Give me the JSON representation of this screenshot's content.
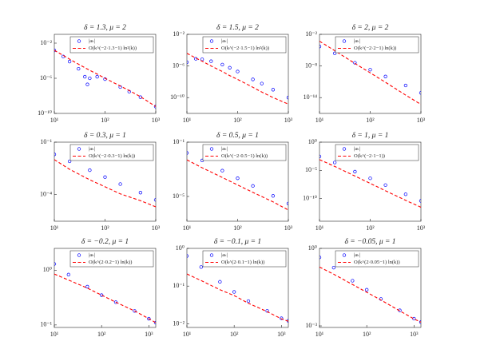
{
  "chart_data": [
    {
      "type": "line",
      "title": "δ = 1.3, μ = 2",
      "log_x": true,
      "log_y": true,
      "legend": "upper right",
      "x": [
        10,
        15,
        20,
        30,
        40,
        45,
        50,
        70,
        100,
        200,
        300,
        500,
        1000
      ],
      "xlim": [
        10,
        1000
      ],
      "xticks": [
        {
          "value": 10,
          "label": "10¹"
        },
        {
          "value": 100,
          "label": "10²"
        },
        {
          "value": 1000,
          "label": "10³"
        }
      ],
      "ylim": [
        1e-10,
        0.1
      ],
      "yticks": [
        {
          "value": 1e-10,
          "label": "10⁻¹⁰"
        },
        {
          "value": 1e-06,
          "label": "10⁻⁶"
        },
        {
          "value": 0.01,
          "label": "10⁻²"
        }
      ],
      "series": [
        {
          "name": "|aₖ|",
          "color": "#0000ff",
          "marker": "o",
          "values": [
            0.0015,
            0.0003,
            8e-05,
            1.2e-05,
            1.5e-06,
            2e-07,
            1e-06,
            1.5e-06,
            8e-07,
            1e-07,
            3e-08,
            7e-09,
            6e-10
          ]
        },
        {
          "name": "O(k^(−2·1.3−1) ln²(k))",
          "color": "#ff0000",
          "linestyle": "dashed",
          "values": [
            0.0015,
            0.0004,
            0.00015,
            4e-05,
            1.6e-05,
            1.1e-05,
            8e-06,
            3e-06,
            1e-06,
            1.3e-07,
            4e-08,
            8e-09,
            6e-10
          ]
        }
      ]
    },
    {
      "type": "line",
      "title": "δ = 1.5, μ = 2",
      "log_x": true,
      "log_y": true,
      "legend": "upper right",
      "x": [
        10,
        15,
        20,
        30,
        50,
        70,
        100,
        200,
        300,
        500,
        1000
      ],
      "xlim": [
        10,
        1000
      ],
      "xticks": [
        {
          "value": 10,
          "label": "10¹"
        },
        {
          "value": 100,
          "label": "10²"
        },
        {
          "value": 1000,
          "label": "10³"
        }
      ],
      "ylim": [
        1e-12,
        0.01
      ],
      "yticks": [
        {
          "value": 1e-10,
          "label": "10⁻¹⁰"
        },
        {
          "value": 1e-06,
          "label": "10⁻⁶"
        },
        {
          "value": 0.01,
          "label": "10⁻²"
        }
      ],
      "series": [
        {
          "name": "|aₖ|",
          "color": "#0000ff",
          "marker": "o",
          "values": [
            3e-06,
            8e-06,
            7e-06,
            4e-06,
            1.5e-06,
            6e-07,
            2e-07,
            2e-08,
            6e-09,
            1e-09,
            1e-10
          ]
        },
        {
          "name": "O(k^(−2·1.5−1) ln²(k))",
          "color": "#ff0000",
          "linestyle": "dashed",
          "values": [
            4e-05,
            1e-05,
            4e-06,
            1e-06,
            2e-07,
            6e-08,
            2e-08,
            2e-09,
            5e-10,
            1e-10,
            1.5e-11
          ]
        }
      ]
    },
    {
      "type": "line",
      "title": "δ = 2, μ = 2",
      "log_x": true,
      "log_y": true,
      "legend": "upper right",
      "x": [
        10,
        20,
        50,
        100,
        200,
        500,
        1000
      ],
      "xlim": [
        10,
        1000
      ],
      "xticks": [
        {
          "value": 10,
          "label": "10¹"
        },
        {
          "value": 100,
          "label": "10²"
        },
        {
          "value": 1000,
          "label": "10³"
        }
      ],
      "ylim": [
        1e-17,
        0.01
      ],
      "yticks": [
        {
          "value": 1e-14,
          "label": "10⁻¹⁴"
        },
        {
          "value": 1e-08,
          "label": "10⁻⁸"
        },
        {
          "value": 0.01,
          "label": "10⁻²"
        }
      ],
      "series": [
        {
          "name": "|aₖ|",
          "color": "#0000ff",
          "marker": "o",
          "values": [
            5e-05,
            2.5e-06,
            4e-08,
            2e-09,
            1e-10,
            2e-12,
            8e-14
          ]
        },
        {
          "name": "O(k^(−2·2−1) ln(k))",
          "color": "#ff0000",
          "linestyle": "dashed",
          "values": [
            0.0005,
            8e-06,
            3e-08,
            5e-10,
            8e-12,
            3e-14,
            5e-16
          ]
        }
      ]
    },
    {
      "type": "line",
      "title": "δ = 0.3, μ = 1",
      "log_x": true,
      "log_y": true,
      "legend": "upper right",
      "x": [
        10,
        20,
        50,
        100,
        200,
        500,
        1000
      ],
      "xlim": [
        10,
        1000
      ],
      "xticks": [
        {
          "value": 10,
          "label": "10¹"
        },
        {
          "value": 100,
          "label": "10²"
        },
        {
          "value": 1000,
          "label": "10³"
        }
      ],
      "ylim": [
        3e-06,
        0.1
      ],
      "yticks": [
        {
          "value": 0.0001,
          "label": "10⁻⁴"
        },
        {
          "value": 0.1,
          "label": "10⁻¹"
        }
      ],
      "series": [
        {
          "name": "|aₖ|",
          "color": "#0000ff",
          "marker": "o",
          "values": [
            0.02,
            0.008,
            0.0025,
            0.001,
            0.0004,
            0.00013,
            5e-05
          ]
        },
        {
          "name": "O(k^(−2·0.3−1) ln(k))",
          "color": "#ff0000",
          "linestyle": "dashed",
          "values": [
            0.01,
            0.0028,
            0.0007,
            0.00028,
            0.00011,
            4.5e-05,
            2e-05
          ]
        }
      ]
    },
    {
      "type": "line",
      "title": "δ = 0.5, μ = 1",
      "log_x": true,
      "log_y": true,
      "legend": "upper right",
      "x": [
        10,
        20,
        50,
        100,
        200,
        500,
        1000
      ],
      "xlim": [
        10,
        1000
      ],
      "xticks": [
        {
          "value": 10,
          "label": "10¹"
        },
        {
          "value": 100,
          "label": "10²"
        },
        {
          "value": 1000,
          "label": "10³"
        }
      ],
      "ylim": [
        1.5e-07,
        0.1
      ],
      "yticks": [
        {
          "value": 1e-05,
          "label": "10⁻⁵"
        },
        {
          "value": 0.1,
          "label": "10⁻¹"
        }
      ],
      "series": [
        {
          "name": "|aₖ|",
          "color": "#0000ff",
          "marker": "o",
          "values": [
            0.016,
            0.0045,
            0.0008,
            0.00022,
            6e-05,
            1.1e-05,
            3e-06
          ]
        },
        {
          "name": "O(k^(−2·0.5−1) ln(k))",
          "color": "#ff0000",
          "linestyle": "dashed",
          "values": [
            0.005,
            0.0013,
            0.00025,
            7e-05,
            2e-05,
            4e-06,
            1e-06
          ]
        }
      ]
    },
    {
      "type": "line",
      "title": "δ = 1, μ = 1",
      "log_x": true,
      "log_y": true,
      "legend": "upper right",
      "x": [
        10,
        20,
        50,
        100,
        200,
        500,
        1000
      ],
      "xlim": [
        10,
        1000
      ],
      "xticks": [
        {
          "value": 10,
          "label": "10¹"
        },
        {
          "value": 100,
          "label": "10²"
        },
        {
          "value": 1000,
          "label": "10³"
        }
      ],
      "ylim": [
        1e-14,
        1
      ],
      "yticks": [
        {
          "value": 1e-10,
          "label": "10⁻¹⁰"
        },
        {
          "value": 1e-05,
          "label": "10⁻⁵"
        },
        {
          "value": 1,
          "label": "10⁰"
        }
      ],
      "series": [
        {
          "name": "|aₖ|",
          "color": "#0000ff",
          "marker": "o",
          "values": [
            0.003,
            0.00025,
            6e-06,
            4e-07,
            2.5e-08,
            6e-10,
            4e-11
          ]
        },
        {
          "name": "O(k^(−2·1−1))",
          "color": "#ff0000",
          "linestyle": "dashed",
          "values": [
            0.0008,
            5e-05,
            1e-06,
            5e-08,
            2.5e-09,
            5e-11,
            3e-12
          ]
        }
      ]
    },
    {
      "type": "line",
      "title": "δ = −0.2, μ = 1",
      "log_x": true,
      "log_y": true,
      "legend": "upper right",
      "x": [
        10,
        20,
        50,
        100,
        200,
        500,
        1000,
        1400
      ],
      "xlim": [
        10,
        1400
      ],
      "xticks": [
        {
          "value": 10,
          "label": "10¹"
        },
        {
          "value": 100,
          "label": "10²"
        },
        {
          "value": 1000,
          "label": "10³"
        }
      ],
      "ylim": [
        0.09,
        2.5
      ],
      "yticks": [
        {
          "value": 0.1,
          "label": "10⁻¹"
        },
        {
          "value": 1,
          "label": "10⁰"
        }
      ],
      "series": [
        {
          "name": "|aₖ|",
          "color": "#0000ff",
          "marker": "o",
          "values": [
            1.3,
            0.83,
            0.5,
            0.35,
            0.26,
            0.18,
            0.13,
            0.11
          ]
        },
        {
          "name": "O(k^(2·0.2−1) ln(k))",
          "color": "#ff0000",
          "linestyle": "dashed",
          "values": [
            0.85,
            0.66,
            0.47,
            0.35,
            0.26,
            0.18,
            0.13,
            0.11
          ]
        }
      ]
    },
    {
      "type": "line",
      "title": "δ = −0.1, μ = 1",
      "log_x": true,
      "log_y": true,
      "legend": "upper right",
      "x": [
        10,
        20,
        50,
        100,
        200,
        500,
        1000,
        1400
      ],
      "xlim": [
        10,
        1400
      ],
      "xticks": [
        {
          "value": 10,
          "label": "10¹"
        },
        {
          "value": 100,
          "label": "10²"
        },
        {
          "value": 1000,
          "label": "10³"
        }
      ],
      "ylim": [
        0.008,
        1
      ],
      "yticks": [
        {
          "value": 0.01,
          "label": "10⁻²"
        },
        {
          "value": 0.1,
          "label": "10⁻¹"
        },
        {
          "value": 1,
          "label": "10⁰"
        }
      ],
      "series": [
        {
          "name": "|aₖ|",
          "color": "#0000ff",
          "marker": "o",
          "values": [
            0.63,
            0.32,
            0.13,
            0.07,
            0.04,
            0.022,
            0.014,
            0.012
          ]
        },
        {
          "name": "O(k^(2·0.1−1) ln(k))",
          "color": "#ff0000",
          "linestyle": "dashed",
          "values": [
            0.21,
            0.14,
            0.08,
            0.056,
            0.035,
            0.021,
            0.0135,
            0.0117
          ]
        }
      ]
    },
    {
      "type": "line",
      "title": "δ = −0.05, μ = 1",
      "log_x": true,
      "log_y": true,
      "legend": "upper right",
      "x": [
        10,
        20,
        50,
        100,
        200,
        500,
        1000,
        1400
      ],
      "xlim": [
        10,
        1400
      ],
      "xticks": [
        {
          "value": 10,
          "label": "10¹"
        },
        {
          "value": 100,
          "label": "10²"
        },
        {
          "value": 1000,
          "label": "10³"
        }
      ],
      "ylim": [
        0.00087,
        1
      ],
      "yticks": [
        {
          "value": 0.001,
          "label": "10⁻³"
        },
        {
          "value": 1,
          "label": "10⁰"
        }
      ],
      "series": [
        {
          "name": "|aₖ|",
          "color": "#0000ff",
          "marker": "o",
          "values": [
            0.45,
            0.18,
            0.056,
            0.025,
            0.011,
            0.004,
            0.0019,
            0.0014
          ]
        },
        {
          "name": "O(k^(2·0.05−1) ln(k))",
          "color": "#ff0000",
          "linestyle": "dashed",
          "values": [
            0.19,
            0.1,
            0.04,
            0.02,
            0.01,
            0.0038,
            0.00186,
            0.0014
          ]
        }
      ]
    }
  ]
}
